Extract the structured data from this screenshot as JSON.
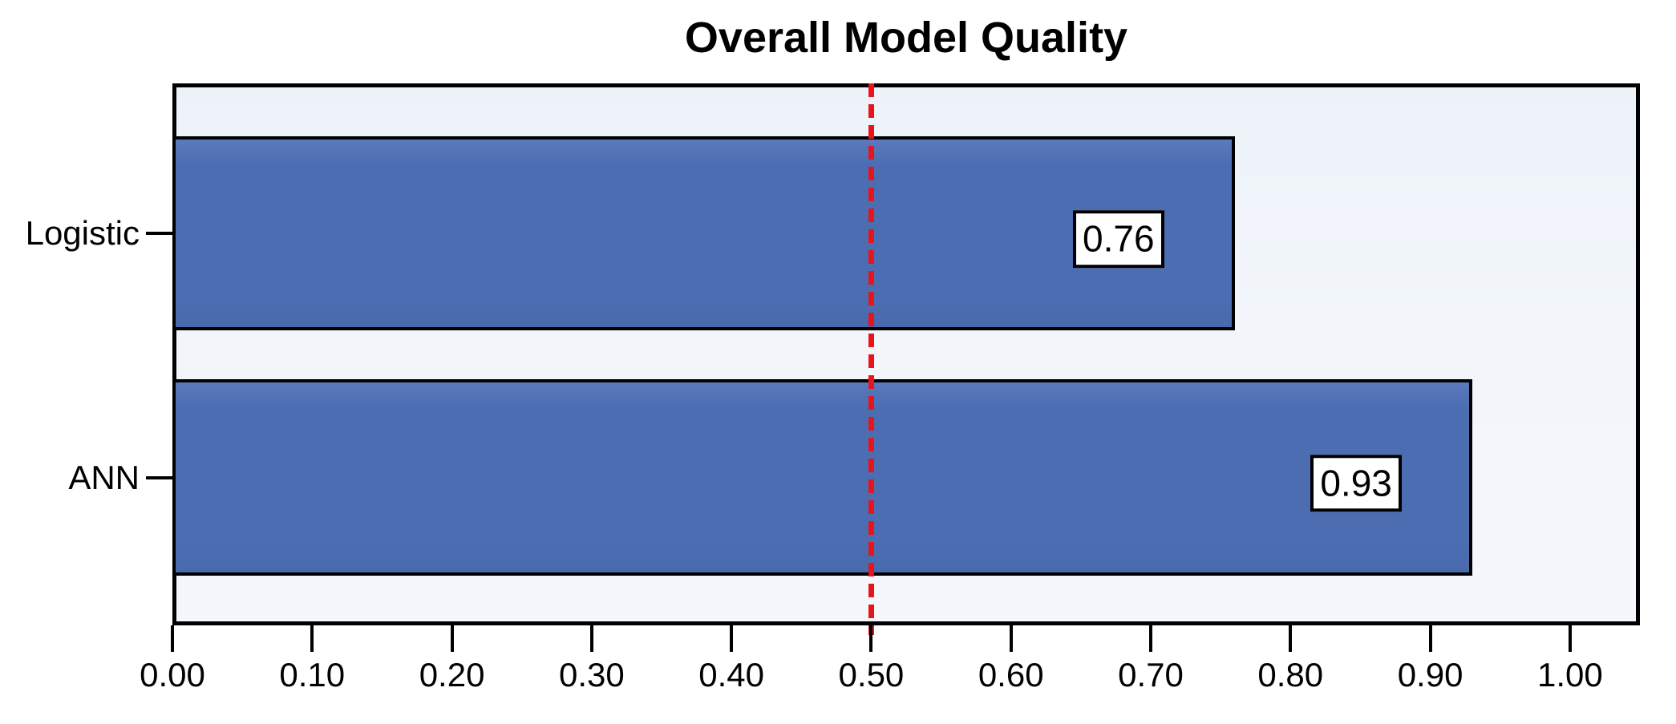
{
  "chart_data": {
    "type": "bar",
    "orientation": "horizontal",
    "title": "Overall Model Quality",
    "categories": [
      "Logistic",
      "ANN"
    ],
    "values": [
      0.76,
      0.93
    ],
    "value_labels": [
      "0.76",
      "0.93"
    ],
    "x_ticks": [
      "0.00",
      "0.10",
      "0.20",
      "0.30",
      "0.40",
      "0.50",
      "0.60",
      "0.70",
      "0.80",
      "0.90",
      "1.00"
    ],
    "xlim": [
      0,
      1.05
    ],
    "grid": "off",
    "legend": "none",
    "reference_line": {
      "value": 0.5,
      "style": "dashed",
      "color": "#e8141b"
    },
    "colors": {
      "bar_fill": "#4c6db2",
      "bar_border": "#000000",
      "plot_background": "#f1f5fa",
      "plot_border": "#000000",
      "page_background": "#ffffff",
      "text": "#000000"
    }
  }
}
